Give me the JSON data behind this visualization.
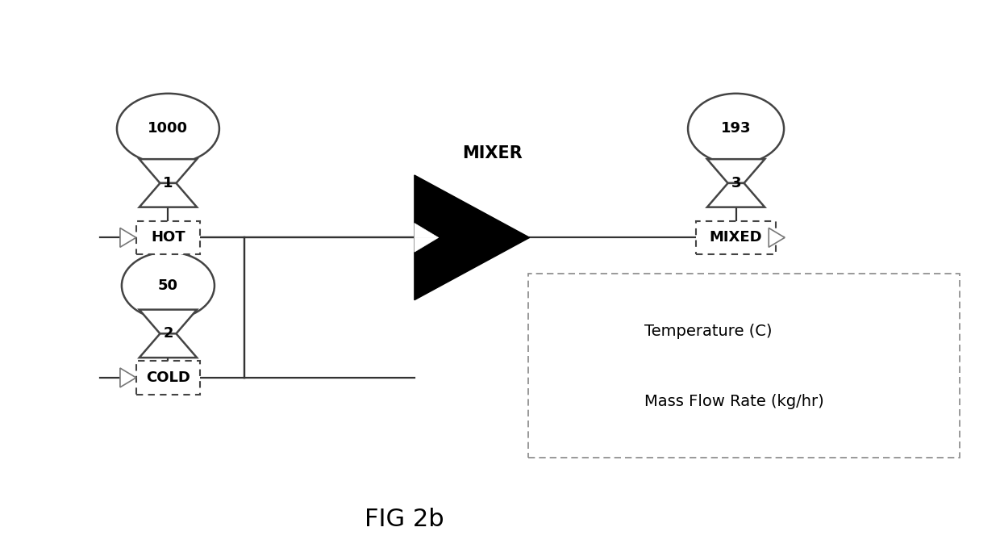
{
  "bg_color": "#ffffff",
  "fig_title": "FIG 2b",
  "title_fontsize": 22,
  "line_color": "#333333",
  "edge_color": "#444444",
  "mixer_label": "MIXER",
  "hot_label": "HOT",
  "cold_label": "COLD",
  "mixed_label": "MIXED",
  "temp_1": "1000",
  "temp_3": "193",
  "flow_1": "1",
  "flow_2": "2",
  "flow_3": "3",
  "cold_temp": "50",
  "legend_temp_label": "Temperature (C)",
  "legend_flow_label": "Mass Flow Rate (kg/hr)"
}
